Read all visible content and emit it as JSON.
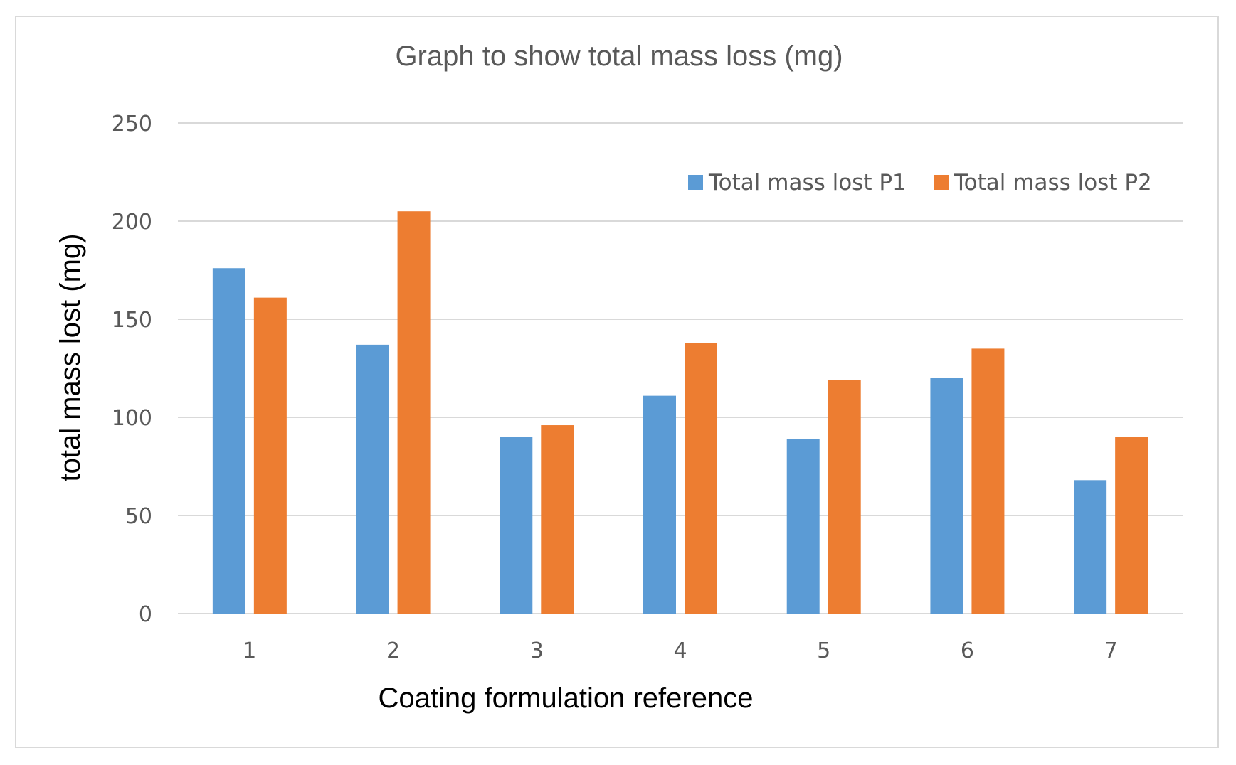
{
  "chart_data": {
    "type": "bar",
    "title": "Graph to show total mass loss (mg)",
    "xlabel": "Coating formulation reference",
    "ylabel": "total mass lost (mg)",
    "categories": [
      "1",
      "2",
      "3",
      "4",
      "5",
      "6",
      "7"
    ],
    "series": [
      {
        "name": "Total mass lost P1",
        "color": "#5b9bd5",
        "values": [
          176,
          137,
          90,
          111,
          89,
          120,
          68
        ]
      },
      {
        "name": "Total mass lost P2",
        "color": "#ed7d31",
        "values": [
          161,
          205,
          96,
          138,
          119,
          135,
          90
        ]
      }
    ],
    "ylim": [
      0,
      250
    ],
    "yticks": [
      "0",
      "50",
      "100",
      "150",
      "200",
      "250"
    ],
    "grid": true,
    "legend_position": "top-right"
  }
}
